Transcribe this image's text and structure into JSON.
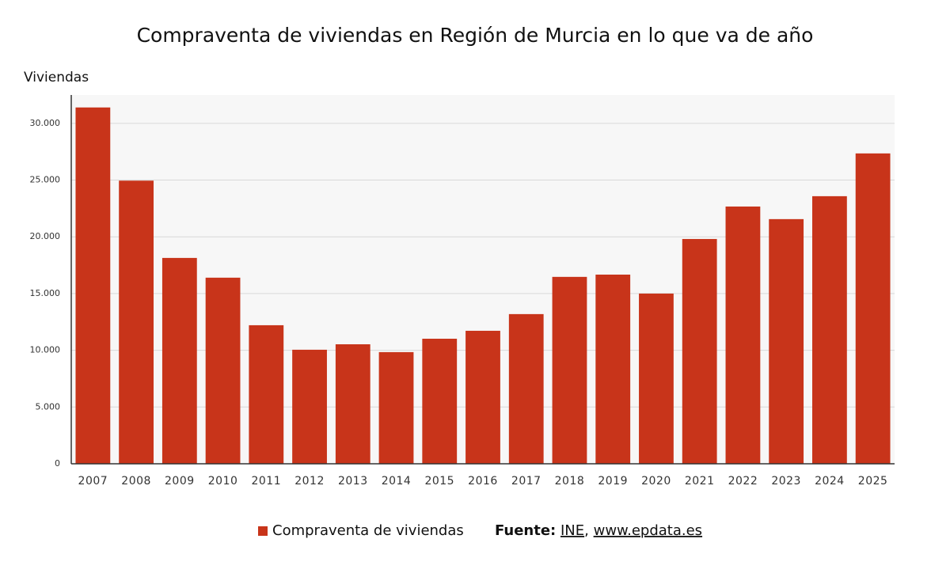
{
  "chart_data": {
    "type": "bar",
    "title": "Compraventa de viviendas en Región de Murcia en lo que va de año",
    "y_label": "Viviendas",
    "categories": [
      "2007",
      "2008",
      "2009",
      "2010",
      "2011",
      "2012",
      "2013",
      "2014",
      "2015",
      "2016",
      "2017",
      "2018",
      "2019",
      "2020",
      "2021",
      "2022",
      "2023",
      "2024",
      "2025"
    ],
    "series": [
      {
        "name": "Compraventa de viviendas",
        "color": "#c8341a",
        "values": [
          31400,
          24950,
          18140,
          16400,
          12210,
          10050,
          10530,
          9840,
          11020,
          11720,
          13190,
          16470,
          16670,
          15000,
          19810,
          22670,
          21560,
          23580,
          27350
        ]
      }
    ],
    "ylim": [
      0,
      32500
    ],
    "yticks": [
      0,
      {
        "value": 5000,
        "label": "5.000"
      },
      {
        "value": 10000,
        "label": "10.000"
      },
      {
        "value": 15000,
        "label": "15.000"
      },
      {
        "value": 20000,
        "label": "20.000"
      },
      {
        "value": 25000,
        "label": "25.000"
      },
      {
        "value": 30000,
        "label": "30.000"
      }
    ],
    "grid": true,
    "source": {
      "label": "Fuente:",
      "links": [
        "INE",
        "www.epdata.es"
      ],
      "separator": ","
    }
  }
}
